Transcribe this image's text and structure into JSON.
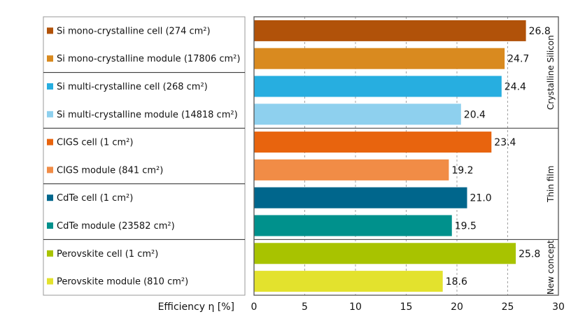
{
  "chart_data": {
    "type": "bar",
    "orientation": "horizontal",
    "xlabel": "Efficiency η [%]",
    "xlim": [
      0,
      30
    ],
    "xticks": [
      0,
      5,
      10,
      15,
      20,
      25,
      30
    ],
    "grid": "vertical dashed",
    "categories": [
      "Si mono-crystalline cell (274 cm²)",
      "Si mono-crystalline module (17806 cm²)",
      "Si multi-crystalline cell (268 cm²)",
      "Si multi-crystalline module (14818 cm²)",
      "CIGS cell (1 cm²)",
      "CIGS module (841 cm²)",
      "CdTe cell (1 cm²)",
      "CdTe module (23582 cm²)",
      "Perovskite cell (1 cm²)",
      "Perovskite module (810 cm²)"
    ],
    "values": [
      26.8,
      24.7,
      24.4,
      20.4,
      23.4,
      19.2,
      21.0,
      19.5,
      25.8,
      18.6
    ],
    "value_labels": [
      "26.8",
      "24.7",
      "24.4",
      "20.4",
      "23.4",
      "19.2",
      "21.0",
      "19.5",
      "25.8",
      "18.6"
    ],
    "colors": [
      "#b15209",
      "#d98a1f",
      "#27aee0",
      "#8ed0ee",
      "#e8640e",
      "#f18c46",
      "#00668c",
      "#00918c",
      "#a8c300",
      "#e3e22d"
    ],
    "groups": [
      {
        "label": "Crystalline Silicon",
        "start": 0,
        "end": 3
      },
      {
        "label": "Thin film",
        "start": 4,
        "end": 7
      },
      {
        "label": "New concept",
        "start": 8,
        "end": 9
      }
    ],
    "separators_after": [
      1,
      3,
      5,
      7
    ]
  }
}
